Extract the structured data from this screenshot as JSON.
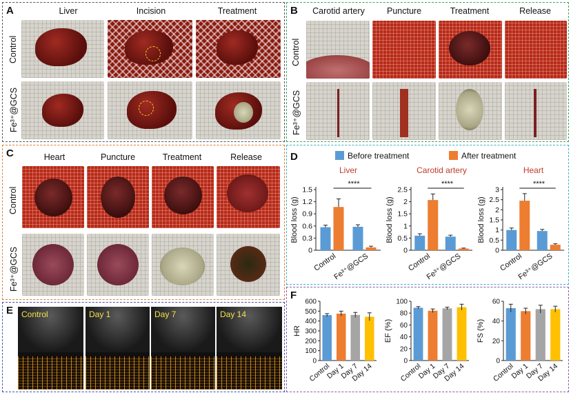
{
  "panels": {
    "a": "A",
    "b": "B",
    "c": "C",
    "d": "D",
    "e": "E",
    "f": "F"
  },
  "panel_a": {
    "cols": [
      "Liver",
      "Incision",
      "Treatment"
    ],
    "rows": [
      "Control",
      "Fe³⁺@GCS"
    ]
  },
  "panel_b": {
    "cols": [
      "Carotid artery",
      "Puncture",
      "Treatment",
      "Release"
    ],
    "rows": [
      "Control",
      "Fe³⁺@GCS"
    ]
  },
  "panel_c": {
    "cols": [
      "Heart",
      "Puncture",
      "Treatment",
      "Release"
    ],
    "rows": [
      "Control",
      "Fe³⁺@GCS"
    ]
  },
  "panel_e": {
    "labels": [
      "Control",
      "Day 1",
      "Day 7",
      "Day 14"
    ]
  },
  "legend": {
    "before": "Before treatment",
    "after": "After treatment"
  },
  "colors": {
    "blue": "#5b9bd5",
    "orange": "#ed7d31",
    "gray": "#a5a5a5",
    "yellow": "#ffc000",
    "titleRed": "#c0392b",
    "sigLine": "#111111"
  },
  "chart_data": [
    {
      "type": "bar",
      "title": "Liver",
      "ylabel": "Blood loss (g)",
      "categories": [
        "Control",
        "Fe³⁺@GCS"
      ],
      "ylim": [
        0,
        1.5
      ],
      "yticks": [
        "0",
        "0.3",
        "0.6",
        "0.9",
        "1.2",
        "1.5"
      ],
      "series": [
        {
          "name": "Before treatment",
          "values": [
            0.57,
            0.58
          ],
          "errors": [
            0.05,
            0.05
          ]
        },
        {
          "name": "After treatment",
          "values": [
            1.07,
            0.07
          ],
          "errors": [
            0.2,
            0.03
          ]
        }
      ],
      "annotation": "****"
    },
    {
      "type": "bar",
      "title": "Carotid artery",
      "ylabel": "Blood loss (g)",
      "categories": [
        "Control",
        "Fe³⁺@GCS"
      ],
      "ylim": [
        0,
        2.5
      ],
      "yticks": [
        "0",
        "0.5",
        "1",
        "1.5",
        "2",
        "2.5"
      ],
      "series": [
        {
          "name": "Before treatment",
          "values": [
            0.6,
            0.56
          ],
          "errors": [
            0.08,
            0.06
          ]
        },
        {
          "name": "After treatment",
          "values": [
            2.07,
            0.07
          ],
          "errors": [
            0.25,
            0.02
          ]
        }
      ],
      "annotation": "****"
    },
    {
      "type": "bar",
      "title": "Heart",
      "ylabel": "Blood loss (g)",
      "categories": [
        "Control",
        "Fe³⁺@GCS"
      ],
      "ylim": [
        0,
        3
      ],
      "yticks": [
        "0",
        "0.5",
        "1",
        "1.5",
        "2",
        "2.5",
        "3"
      ],
      "series": [
        {
          "name": "Before treatment",
          "values": [
            1.0,
            0.95
          ],
          "errors": [
            0.1,
            0.08
          ]
        },
        {
          "name": "After treatment",
          "values": [
            2.45,
            0.27
          ],
          "errors": [
            0.35,
            0.05
          ]
        }
      ],
      "annotation": "****"
    },
    {
      "type": "bar",
      "ylabel": "HR",
      "categories": [
        "Control",
        "Day 1",
        "Day 7",
        "Day 14"
      ],
      "ylim": [
        0,
        600
      ],
      "yticks": [
        "0",
        "100",
        "200",
        "300",
        "400",
        "500",
        "600"
      ],
      "values": [
        460,
        475,
        462,
        443
      ],
      "errors": [
        15,
        25,
        25,
        40
      ]
    },
    {
      "type": "bar",
      "ylabel": "EF (%)",
      "categories": [
        "Control",
        "Day 1",
        "Day 7",
        "Day 14"
      ],
      "ylim": [
        0,
        100
      ],
      "yticks": [
        "0",
        "20",
        "40",
        "60",
        "80",
        "100"
      ],
      "values": [
        89,
        84,
        88,
        90
      ],
      "errors": [
        2,
        3,
        2,
        5
      ]
    },
    {
      "type": "bar",
      "ylabel": "FS (%)",
      "categories": [
        "Control",
        "Day 1",
        "Day 7",
        "Day 14"
      ],
      "ylim": [
        0,
        60
      ],
      "yticks": [
        "0",
        "20",
        "40",
        "60"
      ],
      "values": [
        53,
        50,
        52,
        52
      ],
      "errors": [
        4,
        3,
        4,
        3
      ]
    }
  ]
}
